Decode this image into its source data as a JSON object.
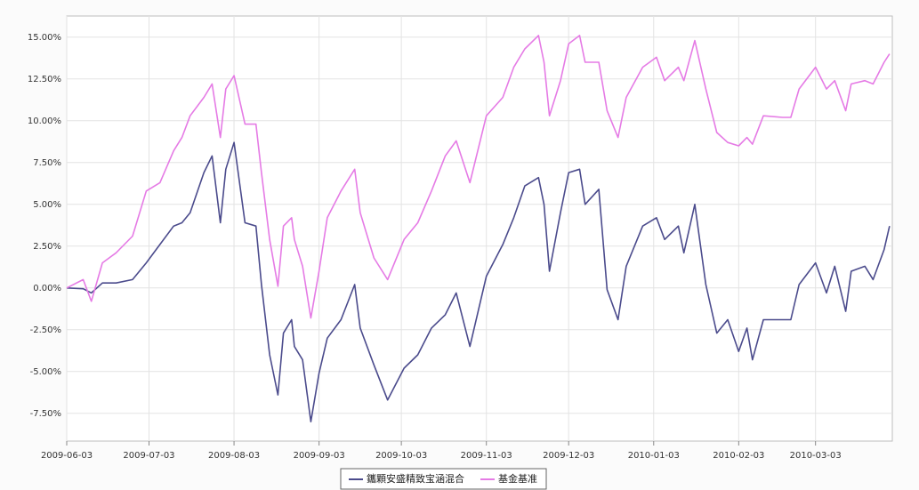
{
  "chart_data": {
    "type": "line",
    "x": [
      "2009-06-03",
      "2009-06-09",
      "2009-06-12",
      "2009-06-16",
      "2009-06-21",
      "2009-06-27",
      "2009-07-02",
      "2009-07-07",
      "2009-07-12",
      "2009-07-15",
      "2009-07-18",
      "2009-07-23",
      "2009-07-26",
      "2009-07-29",
      "2009-07-31",
      "2009-08-03",
      "2009-08-07",
      "2009-08-11",
      "2009-08-13",
      "2009-08-16",
      "2009-08-19",
      "2009-08-21",
      "2009-08-24",
      "2009-08-25",
      "2009-08-28",
      "2009-08-31",
      "2009-09-03",
      "2009-09-06",
      "2009-09-11",
      "2009-09-16",
      "2009-09-18",
      "2009-09-23",
      "2009-09-28",
      "2009-10-04",
      "2009-10-09",
      "2009-10-14",
      "2009-10-19",
      "2009-10-23",
      "2009-10-28",
      "2009-11-03",
      "2009-11-09",
      "2009-11-13",
      "2009-11-17",
      "2009-11-22",
      "2009-11-24",
      "2009-11-26",
      "2009-11-30",
      "2009-12-03",
      "2009-12-07",
      "2009-12-09",
      "2009-12-14",
      "2009-12-17",
      "2009-12-21",
      "2009-12-24",
      "2009-12-30",
      "2010-01-04",
      "2010-01-07",
      "2010-01-12",
      "2010-01-14",
      "2010-01-18",
      "2010-01-22",
      "2010-01-26",
      "2010-01-30",
      "2010-02-03",
      "2010-02-06",
      "2010-02-08",
      "2010-02-12",
      "2010-02-19",
      "2010-02-22",
      "2010-02-25",
      "2010-03-03",
      "2010-03-07",
      "2010-03-10",
      "2010-03-14",
      "2010-03-16",
      "2010-03-21",
      "2010-03-24",
      "2010-03-28",
      "2010-03-30"
    ],
    "series": [
      {
        "name": "鑴顆安盛精致宝涵混合",
        "color": "#4b4b8c",
        "values": [
          0,
          -0.05,
          -0.3,
          0.3,
          0.3,
          0.5,
          1.5,
          2.6,
          3.7,
          3.9,
          4.5,
          6.9,
          7.9,
          3.9,
          7.1,
          8.7,
          3.9,
          3.7,
          0.2,
          -4.0,
          -6.4,
          -2.7,
          -1.9,
          -3.5,
          -4.3,
          -8.0,
          -5.1,
          -3.0,
          -1.9,
          0.2,
          -2.4,
          -4.6,
          -6.7,
          -4.8,
          -4.0,
          -2.4,
          -1.6,
          -0.3,
          -3.5,
          0.7,
          2.6,
          4.2,
          6.1,
          6.6,
          5.0,
          1.0,
          4.5,
          6.9,
          7.1,
          5.0,
          5.9,
          -0.1,
          -1.9,
          1.3,
          3.7,
          4.2,
          2.9,
          3.7,
          2.1,
          5.0,
          0.2,
          -2.7,
          -1.9,
          -3.8,
          -2.4,
          -4.3,
          -1.9,
          -1.9,
          -1.9,
          0.2,
          1.5,
          -0.3,
          1.3,
          -1.4,
          1.0,
          1.3,
          0.5,
          2.3,
          3.7
        ]
      },
      {
        "name": "基金基准",
        "color": "#e57be5",
        "values": [
          0,
          0.5,
          -0.8,
          1.5,
          2.1,
          3.1,
          5.8,
          6.3,
          8.2,
          9.0,
          10.3,
          11.4,
          12.2,
          9.0,
          11.9,
          12.7,
          9.8,
          9.8,
          6.9,
          2.9,
          0.1,
          3.7,
          4.2,
          2.9,
          1.3,
          -1.8,
          1.0,
          4.2,
          5.8,
          7.1,
          4.5,
          1.8,
          0.5,
          2.9,
          3.9,
          5.8,
          7.9,
          8.8,
          6.3,
          10.3,
          11.4,
          13.2,
          14.3,
          15.1,
          13.5,
          10.3,
          12.4,
          14.6,
          15.1,
          13.5,
          13.5,
          10.6,
          9.0,
          11.4,
          13.2,
          13.8,
          12.4,
          13.2,
          12.4,
          14.8,
          11.9,
          9.3,
          8.7,
          8.5,
          9.0,
          8.6,
          10.3,
          10.2,
          10.2,
          11.9,
          13.2,
          11.9,
          12.4,
          10.6,
          12.2,
          12.4,
          12.2,
          13.5,
          14.0
        ]
      }
    ],
    "xlim": [
      "2009-06-03",
      "2010-03-31"
    ],
    "xticks": [
      "2009-06-03",
      "2009-07-03",
      "2009-08-03",
      "2009-09-03",
      "2009-10-03",
      "2009-11-03",
      "2009-12-03",
      "2010-01-03",
      "2010-02-03",
      "2010-03-03"
    ],
    "ylim": [
      -9,
      16
    ],
    "yticks": [
      {
        "value": -7.5,
        "label": "-7.50%"
      },
      {
        "value": -5,
        "label": "-5.00%"
      },
      {
        "value": -2.5,
        "label": "-2.50%"
      },
      {
        "value": 0,
        "label": "0.00%"
      },
      {
        "value": 2.5,
        "label": "2.50%"
      },
      {
        "value": 5,
        "label": "5.00%"
      },
      {
        "value": 7.5,
        "label": "7.50%"
      },
      {
        "value": 10,
        "label": "10.00%"
      },
      {
        "value": 12.5,
        "label": "12.50%"
      },
      {
        "value": 15,
        "label": "15.00%"
      }
    ],
    "grid": true,
    "legend": "bottom"
  }
}
